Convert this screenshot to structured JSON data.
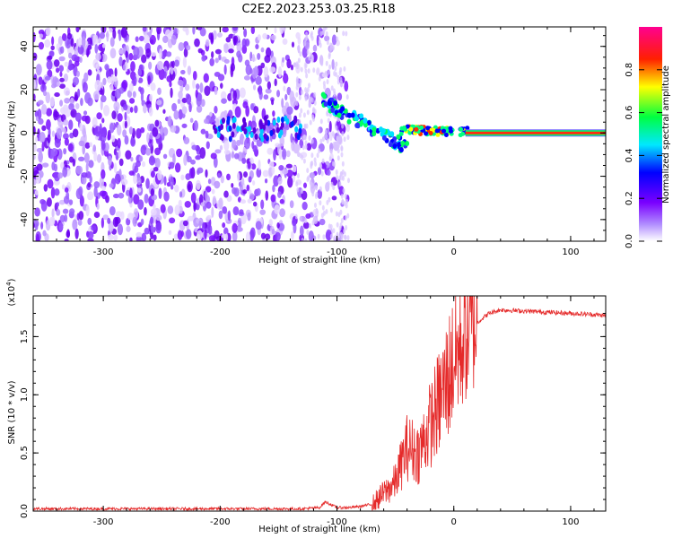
{
  "title": "C2E2.2023.253.03.25.R18",
  "chart_data": [
    {
      "type": "heatmap",
      "xlabel": "Height of straight line (km)",
      "ylabel": "Frequency (Hz)",
      "xlim": [
        -360,
        130
      ],
      "ylim": [
        -50,
        49
      ],
      "xticks": [
        -300,
        -200,
        -100,
        0,
        100
      ],
      "yticks": [
        -40,
        -20,
        0,
        20,
        40
      ],
      "grid": false,
      "features": {
        "noise_region_x": [
          -360,
          -90
        ],
        "tone_line": {
          "x_start": 10,
          "x_end": 130,
          "frequency": 0
        }
      },
      "colorbar": {
        "label": "Normalized spectral amplitude",
        "range": [
          0,
          1
        ],
        "ticks": [
          "0.0",
          "0.2",
          "0.4",
          "0.6",
          "0.8"
        ],
        "colors": [
          "#ffffff",
          "#8000ff",
          "#0000ff",
          "#00ffff",
          "#00ff00",
          "#ffff00",
          "#ff0000",
          "#ff00a0"
        ]
      }
    },
    {
      "type": "line",
      "xlabel": "Height of straight line (km)",
      "ylabel": "SNR (10 * v/v)",
      "yscale_label": "(x10",
      "yscale_exp": "4",
      "yscale_close": ")",
      "xlim": [
        -360,
        130
      ],
      "ylim": [
        0,
        1.85
      ],
      "xticks": [
        -300,
        -200,
        -100,
        0,
        100
      ],
      "yticks": [
        "0.0",
        "0.5",
        "1.0",
        "1.5"
      ],
      "color": "#e52a2a",
      "grid": false,
      "series": [
        {
          "x": [
            -360,
            -300,
            -200,
            -130,
            -115,
            -110,
            -100,
            -90,
            -80,
            -70,
            -60,
            -50,
            -40,
            -30,
            -20,
            -10,
            0,
            10,
            20,
            30,
            40,
            60,
            80,
            100,
            120,
            130
          ],
          "y": [
            0.02,
            0.02,
            0.02,
            0.02,
            0.03,
            0.08,
            0.03,
            0.03,
            0.04,
            0.06,
            0.15,
            0.25,
            0.55,
            0.5,
            0.75,
            1.0,
            1.3,
            1.5,
            1.62,
            1.7,
            1.73,
            1.72,
            1.71,
            1.7,
            1.69,
            1.68
          ]
        }
      ]
    }
  ]
}
